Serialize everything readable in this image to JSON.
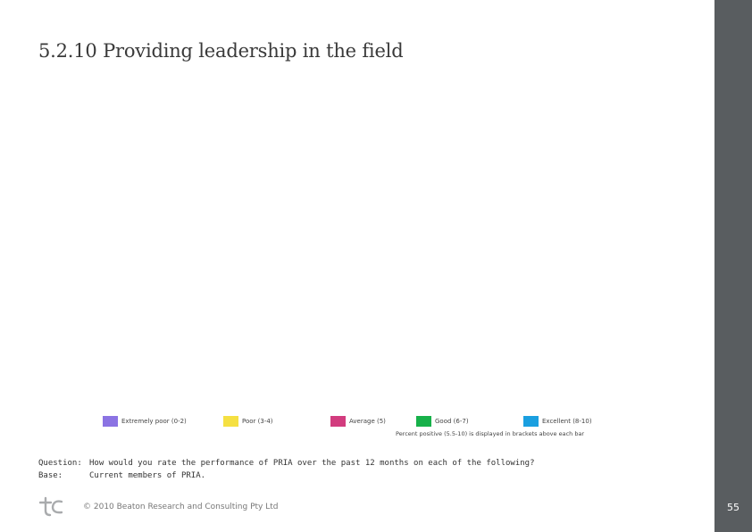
{
  "page": {
    "title": "5.2.10 Providing leadership in the field",
    "number": "55"
  },
  "legend": {
    "items": [
      {
        "label": "Extremely poor (0-2)",
        "color": "#8b73e3"
      },
      {
        "label": "Poor (3-4)",
        "color": "#f5e042"
      },
      {
        "label": "Average (5)",
        "color": "#d23c7e"
      },
      {
        "label": "Good (6-7)",
        "color": "#17b14a"
      },
      {
        "label": "Excellent (8-10)",
        "color": "#1a9fe0"
      }
    ],
    "note": "Percent positive (5.5-10) is displayed in brackets above each bar"
  },
  "question": {
    "label": "Question:",
    "text": "How would you rate the performance of PRIA over the past 12 months on each of the following?"
  },
  "base": {
    "label": "Base:",
    "text": "Current members of PRIA."
  },
  "footer": {
    "copyright": "© 2010 Beaton Research and Consulting Pty Ltd"
  },
  "colors": {
    "sidebar": "#595d60"
  }
}
